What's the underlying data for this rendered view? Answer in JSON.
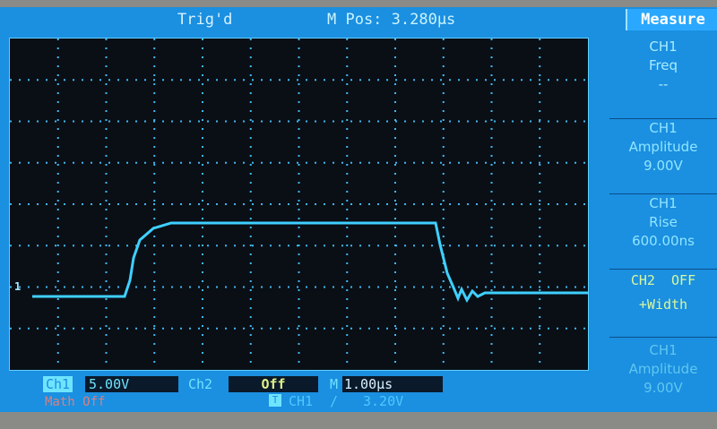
{
  "header": {
    "trigger_status": "Trig'd",
    "main_position": "M Pos: 3.280µs"
  },
  "measure_menu": {
    "title": "Measure",
    "items": [
      {
        "lines": [
          "CH1",
          "Freq",
          "--"
        ]
      },
      {
        "lines": [
          "CH1",
          "Amplitude",
          "9.00V"
        ]
      },
      {
        "lines": [
          "CH1",
          "Rise",
          "600.00ns"
        ]
      },
      {
        "lines": [
          "CH2  OFF",
          "+Width"
        ]
      },
      {
        "lines": [
          "CH1",
          "Amplitude",
          "9.00V"
        ]
      }
    ]
  },
  "status": {
    "ch1_label": "Ch1",
    "ch1_scale": "5.00V",
    "ch2_label": "Ch2",
    "ch2_scale": "Off",
    "time_label": "M",
    "time_scale": "1.00µs",
    "math": "Math Off",
    "trigger_icon": "T",
    "trigger_source": "CH1",
    "trigger_slope": "/",
    "trigger_level": "3.20V"
  },
  "markers": {
    "ch1_ground": "1"
  },
  "colors": {
    "screen": "#1b8fe0",
    "trace": "#3fd0ff",
    "graticule": "#0a0f16"
  }
}
